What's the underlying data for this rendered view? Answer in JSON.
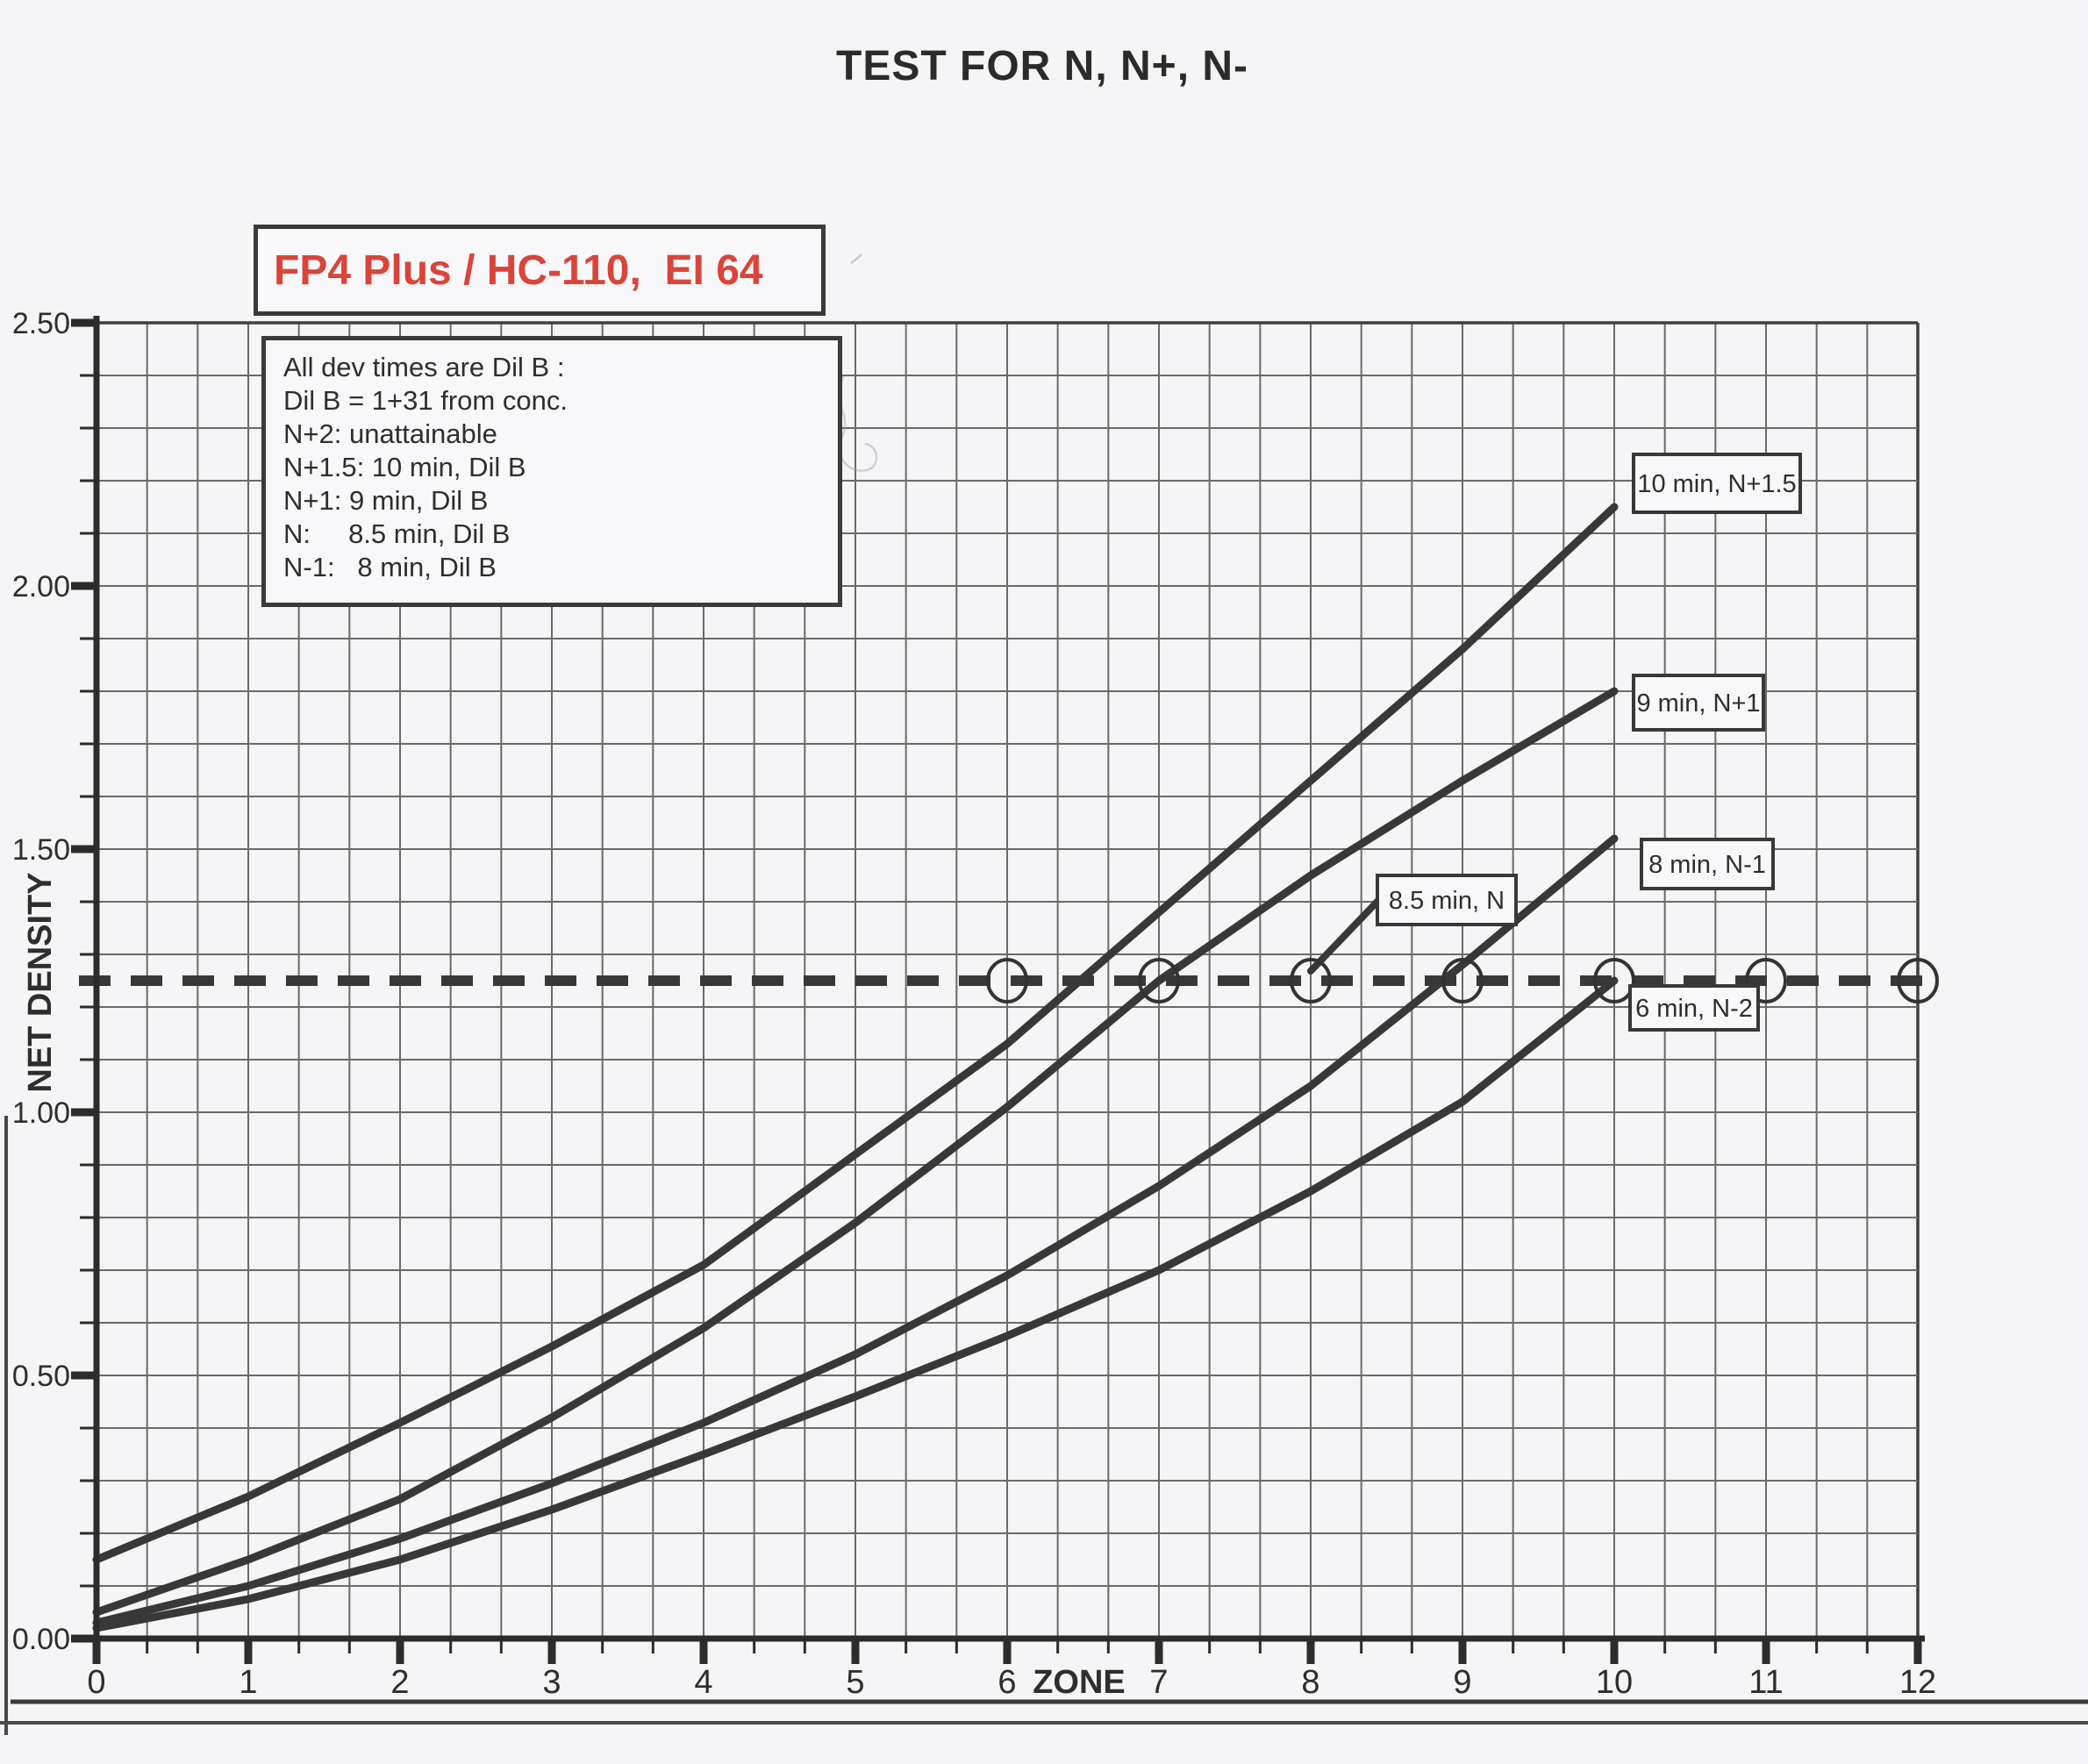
{
  "page": {
    "title": "TEST FOR N, N+, N-"
  },
  "film_box": {
    "text": "FP4 Plus / HC-110,  EI 64",
    "text_color": "#d9453a"
  },
  "notes_box": {
    "lines": [
      "All dev times are Dil B :",
      "Dil B = 1+31 from conc.",
      "N+2: unattainable",
      "N+1.5: 10 min, Dil B",
      "N+1: 9 min, Dil B",
      "N:     8.5 min, Dil B",
      "N-1:   8 min, Dil B"
    ]
  },
  "colors": {
    "accent_red": "#d9453a",
    "ink": "#2e2e2e",
    "grid": "#6a6a6a",
    "boundary": "#3f3f3f",
    "paper": "#f5f5f7",
    "label_box_fill": "#f8f8fa"
  },
  "chart_data": {
    "type": "line",
    "title": "TEST FOR N, N+, N-",
    "xlabel": "ZONE",
    "ylabel": "NET DENSITY",
    "xlim": [
      0,
      12
    ],
    "ylim": [
      0,
      2.5
    ],
    "x_tick_labels": [
      "0",
      "1",
      "2",
      "3",
      "4",
      "5",
      "6",
      "7",
      "8",
      "9",
      "10",
      "11",
      "12"
    ],
    "y_tick_labels": [
      "0.00",
      "0.50",
      "1.00",
      "1.50",
      "2.00",
      "2.50"
    ],
    "x_minor_divisions_per_unit": 3,
    "y_minor_step": 0.1,
    "grid": "on",
    "target_line": {
      "density": 1.25,
      "style": "dashed",
      "circles_at_zones": [
        6,
        7,
        8,
        9,
        10,
        11,
        12
      ]
    },
    "series": [
      {
        "name": "N+1.5",
        "label": "10 min, N+1.5",
        "points": [
          [
            0,
            0.15
          ],
          [
            1,
            0.27
          ],
          [
            2,
            0.41
          ],
          [
            3,
            0.555
          ],
          [
            4,
            0.71
          ],
          [
            5,
            0.92
          ],
          [
            6,
            1.13
          ],
          [
            7,
            1.38
          ],
          [
            8,
            1.63
          ],
          [
            9,
            1.88
          ],
          [
            10,
            2.15
          ]
        ]
      },
      {
        "name": "N+1",
        "label": "9 min, N+1",
        "points": [
          [
            0,
            0.05
          ],
          [
            1,
            0.15
          ],
          [
            2,
            0.265
          ],
          [
            3,
            0.42
          ],
          [
            4,
            0.59
          ],
          [
            5,
            0.79
          ],
          [
            6,
            1.01
          ],
          [
            7,
            1.25
          ],
          [
            8,
            1.45
          ],
          [
            9,
            1.63
          ],
          [
            10,
            1.8
          ]
        ]
      },
      {
        "name": "N-1",
        "label": "8 min, N-1",
        "points": [
          [
            0,
            0.03
          ],
          [
            1,
            0.1
          ],
          [
            2,
            0.19
          ],
          [
            3,
            0.295
          ],
          [
            4,
            0.41
          ],
          [
            5,
            0.54
          ],
          [
            6,
            0.69
          ],
          [
            7,
            0.86
          ],
          [
            8,
            1.05
          ],
          [
            9,
            1.28
          ],
          [
            10,
            1.52
          ]
        ]
      },
      {
        "name": "N-2",
        "label": "6 min, N-2",
        "points": [
          [
            0,
            0.02
          ],
          [
            1,
            0.075
          ],
          [
            2,
            0.15
          ],
          [
            3,
            0.245
          ],
          [
            4,
            0.35
          ],
          [
            5,
            0.46
          ],
          [
            6,
            0.575
          ],
          [
            7,
            0.7
          ],
          [
            8,
            0.85
          ],
          [
            9,
            1.02
          ],
          [
            10,
            1.25
          ]
        ]
      }
    ],
    "interpolated_annotation": {
      "label": "8.5 min, N",
      "marks_zone": 8,
      "at_density": 1.25
    }
  }
}
